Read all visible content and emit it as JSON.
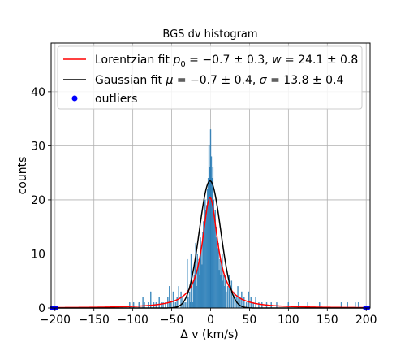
{
  "chart_data": {
    "type": "histogram",
    "title": "BGS dv histogram",
    "xlabel": "Δ v (km/s)",
    "ylabel": "counts",
    "xlim": [
      -205,
      205
    ],
    "ylim": [
      0,
      49
    ],
    "xticks": [
      -200,
      -150,
      -100,
      -50,
      0,
      50,
      100,
      150,
      200
    ],
    "yticks": [
      0,
      10,
      20,
      30,
      40
    ],
    "grid": true,
    "legend_placement": "top-left",
    "colors": {
      "lorentzian": "#ff0000",
      "gaussian": "#000000",
      "outliers": "#0000ff",
      "histogram": "#1f77b4"
    },
    "legend": {
      "lorentzian_label": "Lorentzian fit p0 = −0.7 ± 0.3, w = 24.1 ± 0.8",
      "gaussian_label": "Gaussian fit μ = −0.7 ± 0.4, σ = 13.8 ± 0.4",
      "outliers_label": "outliers"
    },
    "fits": {
      "lorentzian": {
        "p0": -0.7,
        "w": 24.1,
        "peak": 20.4
      },
      "gaussian": {
        "mu": -0.7,
        "sigma": 13.8,
        "peak": 23.5
      }
    },
    "histogram": {
      "bin_width": 1,
      "bins": [
        [
          -104,
          1
        ],
        [
          -99,
          1
        ],
        [
          -92,
          1
        ],
        [
          -87,
          2
        ],
        [
          -85,
          1
        ],
        [
          -80,
          1
        ],
        [
          -77,
          3
        ],
        [
          -73,
          1
        ],
        [
          -70,
          1
        ],
        [
          -66,
          2
        ],
        [
          -63,
          1
        ],
        [
          -61,
          1
        ],
        [
          -58,
          1
        ],
        [
          -55,
          2
        ],
        [
          -53,
          4
        ],
        [
          -51,
          1
        ],
        [
          -48,
          3
        ],
        [
          -45,
          1
        ],
        [
          -43,
          2
        ],
        [
          -41,
          4
        ],
        [
          -38,
          3
        ],
        [
          -36,
          2
        ],
        [
          -34,
          1
        ],
        [
          -32,
          1
        ],
        [
          -30,
          9
        ],
        [
          -29,
          2
        ],
        [
          -27,
          3
        ],
        [
          -26,
          1
        ],
        [
          -25,
          10
        ],
        [
          -23,
          1
        ],
        [
          -22,
          5
        ],
        [
          -21,
          6
        ],
        [
          -20,
          8
        ],
        [
          -19,
          12
        ],
        [
          -18,
          4
        ],
        [
          -17,
          10
        ],
        [
          -16,
          8
        ],
        [
          -15,
          9
        ],
        [
          -14,
          6
        ],
        [
          -13,
          13
        ],
        [
          -12,
          11
        ],
        [
          -11,
          8
        ],
        [
          -10,
          14
        ],
        [
          -9,
          16
        ],
        [
          -8,
          15
        ],
        [
          -7,
          20
        ],
        [
          -6,
          18
        ],
        [
          -5,
          19
        ],
        [
          -4,
          22
        ],
        [
          -3,
          24
        ],
        [
          -2,
          30
        ],
        [
          -1,
          26
        ],
        [
          0,
          33
        ],
        [
          1,
          28
        ],
        [
          2,
          24
        ],
        [
          3,
          26
        ],
        [
          4,
          20
        ],
        [
          5,
          17
        ],
        [
          6,
          18
        ],
        [
          7,
          13
        ],
        [
          8,
          15
        ],
        [
          9,
          11
        ],
        [
          10,
          12
        ],
        [
          11,
          7
        ],
        [
          12,
          9
        ],
        [
          13,
          6
        ],
        [
          14,
          8
        ],
        [
          15,
          10
        ],
        [
          16,
          5
        ],
        [
          17,
          6
        ],
        [
          18,
          4
        ],
        [
          19,
          6
        ],
        [
          20,
          3
        ],
        [
          22,
          4
        ],
        [
          24,
          6
        ],
        [
          25,
          3
        ],
        [
          27,
          5
        ],
        [
          29,
          2
        ],
        [
          31,
          3
        ],
        [
          33,
          2
        ],
        [
          35,
          4
        ],
        [
          38,
          2
        ],
        [
          40,
          3
        ],
        [
          43,
          2
        ],
        [
          46,
          1
        ],
        [
          49,
          3
        ],
        [
          52,
          2
        ],
        [
          55,
          1
        ],
        [
          58,
          2
        ],
        [
          62,
          1
        ],
        [
          66,
          1
        ],
        [
          72,
          1
        ],
        [
          78,
          1
        ],
        [
          85,
          1
        ],
        [
          100,
          1
        ],
        [
          113,
          1
        ],
        [
          125,
          1
        ],
        [
          140,
          1
        ],
        [
          168,
          1
        ],
        [
          176,
          1
        ],
        [
          186,
          1
        ],
        [
          190,
          1
        ]
      ]
    },
    "outliers": [
      {
        "x": -204,
        "y": 0
      },
      {
        "x": -199,
        "y": 0
      },
      {
        "x": 199,
        "y": 0
      },
      {
        "x": 202,
        "y": 0
      }
    ]
  }
}
